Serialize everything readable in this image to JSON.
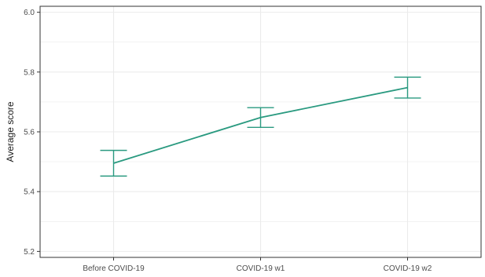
{
  "chart_data": {
    "type": "line",
    "title": "",
    "xlabel": "",
    "ylabel": "Average score",
    "categories": [
      "Before COVID-19",
      "COVID-19 w1",
      "COVID-19 w2"
    ],
    "series": [
      {
        "values": [
          5.495,
          5.648,
          5.748
        ],
        "lower": [
          5.452,
          5.615,
          5.713
        ],
        "upper": [
          5.538,
          5.681,
          5.783
        ]
      }
    ],
    "ylim": [
      5.18,
      6.02
    ],
    "yticks": [
      5.2,
      5.4,
      5.6,
      5.8,
      6.0
    ],
    "ytick_labels": [
      "5.2",
      "5.4",
      "5.6",
      "5.8",
      "6.0"
    ],
    "grid": true,
    "line_color": "#2a9a80",
    "grid_color": "#ebebeb",
    "panel_border_color": "#333333"
  }
}
